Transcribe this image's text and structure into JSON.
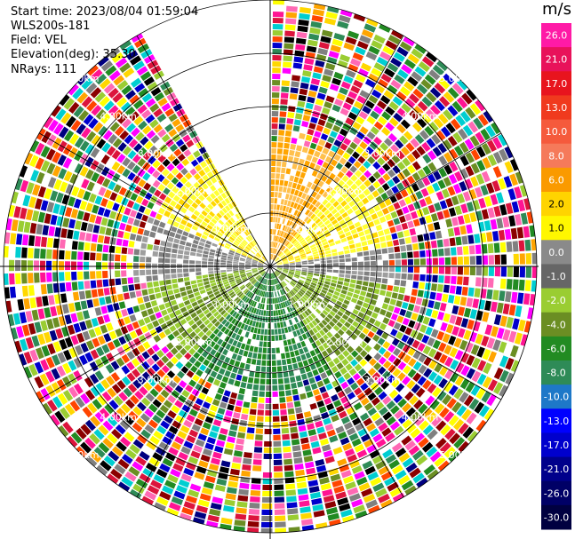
{
  "info": {
    "start_time": "Start time: 2023/08/04 01:59:04",
    "instrument": "WLS200s-181",
    "field": "Field: VEL",
    "elevation": "Elevation(deg): 35.30",
    "nrays": "NRays: 111"
  },
  "range_labels": [
    "1.00km",
    "2.00km",
    "3.00km",
    "4.00km",
    "5.00km"
  ],
  "colorbar": {
    "unit": "m/s",
    "ticks": [
      "26.0",
      "21.0",
      "17.0",
      "13.0",
      "10.0",
      "8.0",
      "6.0",
      "2.0",
      "1.0",
      "0.0",
      "-1.0",
      "-2.0",
      "-4.0",
      "-6.0",
      "-8.0",
      "-10.0",
      "-13.0",
      "-17.0",
      "-21.0",
      "-26.0",
      "-30.0"
    ],
    "colors": [
      "#ff1aa6",
      "#e8125a",
      "#e8141e",
      "#f03a1e",
      "#f55a3c",
      "#f57a5a",
      "#fa9a00",
      "#ffd400",
      "#fff700",
      "#8a8a8a",
      "#666666",
      "#9acd32",
      "#6b8e23",
      "#228b22",
      "#2e8b57",
      "#1e78c8",
      "#0000ff",
      "#0000cd",
      "#00008b",
      "#000066",
      "#000040"
    ]
  },
  "ppi_palette": [
    "#ff1493",
    "#ff69b4",
    "#ffd700",
    "#ffff00",
    "#0000cd",
    "#000080",
    "#228b22",
    "#6b8e23",
    "#9acd32",
    "#808080",
    "#ffa500",
    "#ff4500",
    "#8b0000",
    "#2e8b57",
    "#000000",
    "#00ced1",
    "#dc143c",
    "#ff00ff"
  ]
}
